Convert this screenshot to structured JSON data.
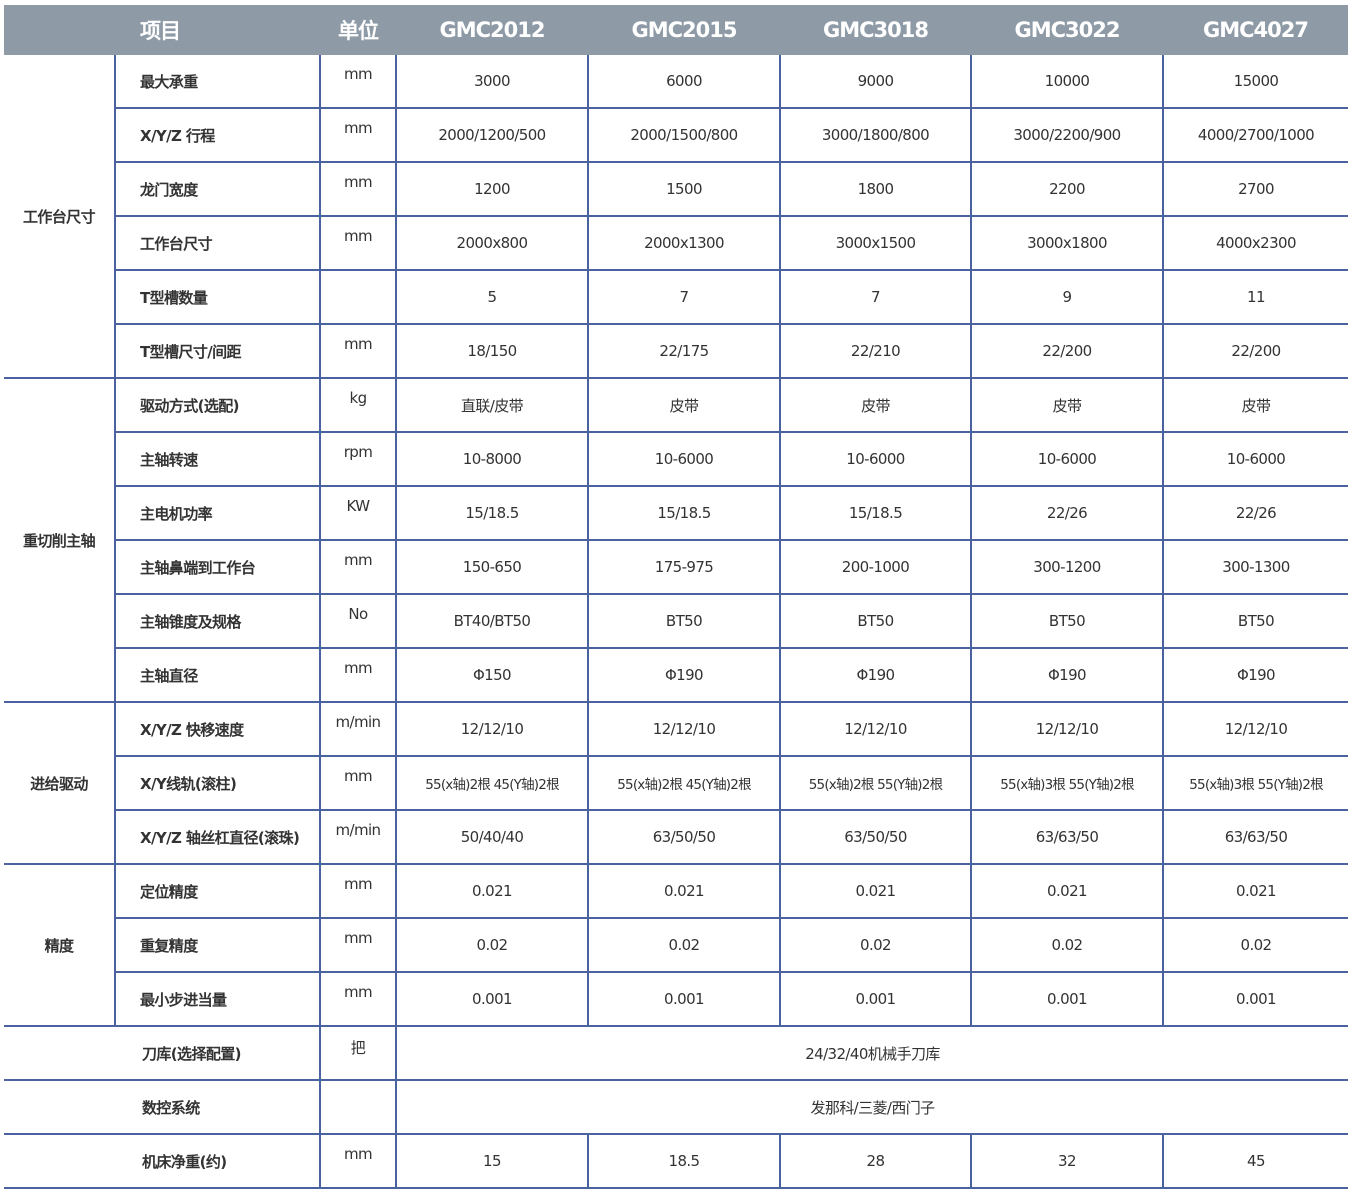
{
  "header": {
    "item": "项目",
    "unit": "单位",
    "models": [
      "GMC2012",
      "GMC2015",
      "GMC3018",
      "GMC3022",
      "GMC4027"
    ]
  },
  "groups": [
    {
      "name": "工作台尺寸",
      "rows": [
        {
          "item": "最大承重",
          "unit": "mm",
          "values": [
            "3000",
            "6000",
            "9000",
            "10000",
            "15000"
          ]
        },
        {
          "item": "X/Y/Z 行程",
          "unit": "mm",
          "values": [
            "2000/1200/500",
            "2000/1500/800",
            "3000/1800/800",
            "3000/2200/900",
            "4000/2700/1000"
          ]
        },
        {
          "item": "龙门宽度",
          "unit": "mm",
          "values": [
            "1200",
            "1500",
            "1800",
            "2200",
            "2700"
          ]
        },
        {
          "item": "工作台尺寸",
          "unit": "mm",
          "values": [
            "2000x800",
            "2000x1300",
            "3000x1500",
            "3000x1800",
            "4000x2300"
          ]
        },
        {
          "item": "T型槽数量",
          "unit": "",
          "values": [
            "5",
            "7",
            "7",
            "9",
            "11"
          ]
        },
        {
          "item": "T型槽尺寸/间距",
          "unit": "mm",
          "values": [
            "18/150",
            "22/175",
            "22/210",
            "22/200",
            "22/200"
          ]
        }
      ]
    },
    {
      "name": "重切削主轴",
      "rows": [
        {
          "item": "驱动方式(选配)",
          "unit": "kg",
          "values": [
            "直联/皮带",
            "皮带",
            "皮带",
            "皮带",
            "皮带"
          ]
        },
        {
          "item": "主轴转速",
          "unit": "rpm",
          "values": [
            "10-8000",
            "10-6000",
            "10-6000",
            "10-6000",
            "10-6000"
          ]
        },
        {
          "item": "主电机功率",
          "unit": "KW",
          "values": [
            "15/18.5",
            "15/18.5",
            "15/18.5",
            "22/26",
            "22/26"
          ]
        },
        {
          "item": "主轴鼻端到工作台",
          "unit": "mm",
          "values": [
            "150-650",
            "175-975",
            "200-1000",
            "300-1200",
            "300-1300"
          ]
        },
        {
          "item": "主轴锥度及规格",
          "unit": "No",
          "values": [
            "BT40/BT50",
            "BT50",
            "BT50",
            "BT50",
            "BT50"
          ]
        },
        {
          "item": "主轴直径",
          "unit": "mm",
          "values": [
            "Φ150",
            "Φ190",
            "Φ190",
            "Φ190",
            "Φ190"
          ]
        }
      ]
    },
    {
      "name": "进给驱动",
      "rows": [
        {
          "item": "X/Y/Z 快移速度",
          "unit": "m/min",
          "values": [
            "12/12/10",
            "12/12/10",
            "12/12/10",
            "12/12/10",
            "12/12/10"
          ]
        },
        {
          "item": "X/Y线轨(滚柱)",
          "unit": "mm",
          "values": [
            "55(x轴)2根 45(Y轴)2根",
            "55(x轴)2根 45(Y轴)2根",
            "55(x轴)2根 55(Y轴)2根",
            "55(x轴)3根 55(Y轴)2根",
            "55(x轴)3根 55(Y轴)2根"
          ]
        },
        {
          "item": "X/Y/Z 轴丝杠直径(滚珠)",
          "unit": "m/min",
          "values": [
            "50/40/40",
            "63/50/50",
            "63/50/50",
            "63/63/50",
            "63/63/50"
          ]
        }
      ]
    },
    {
      "name": "精度",
      "rows": [
        {
          "item": "定位精度",
          "unit": "mm",
          "values": [
            "0.021",
            "0.021",
            "0.021",
            "0.021",
            "0.021"
          ]
        },
        {
          "item": "重复精度",
          "unit": "mm",
          "values": [
            "0.02",
            "0.02",
            "0.02",
            "0.02",
            "0.02"
          ]
        },
        {
          "item": "最小步进当量",
          "unit": "mm",
          "values": [
            "0.001",
            "0.001",
            "0.001",
            "0.001",
            "0.001"
          ]
        }
      ]
    }
  ],
  "other_rows": [
    {
      "item": "刀库(选择配置)",
      "unit": "把",
      "span_value": "24/32/40机械手刀库"
    },
    {
      "item": "数控系统",
      "unit": "",
      "span_value": "发那科/三菱/西门子"
    },
    {
      "item": "机床净重(约)",
      "unit": "mm",
      "values": [
        "15",
        "18.5",
        "28",
        "32",
        "45"
      ]
    }
  ],
  "colors": {
    "header_bg": "#8e9ba6",
    "border": "#4a62a0"
  }
}
